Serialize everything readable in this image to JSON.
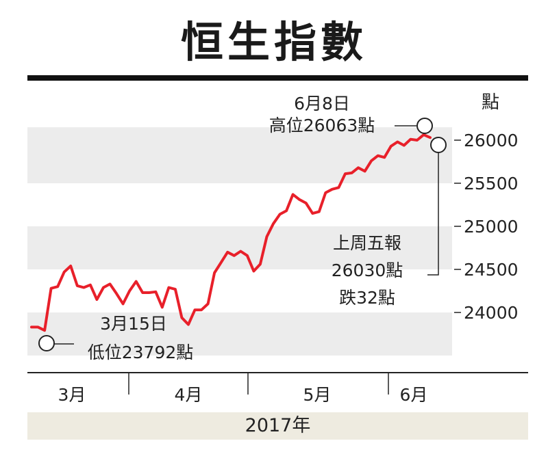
{
  "title": "恒生指數",
  "unit_label": "點",
  "year_label": "2017年",
  "colors": {
    "line": "#e8202a",
    "band": "#ececec",
    "year_band": "#eeebe0"
  },
  "annotations": {
    "high": {
      "line1": "6月8日",
      "line2": "高位26063點"
    },
    "low": {
      "line1": "3月15日",
      "line2": "低位23792點"
    },
    "last": {
      "line1": "上周五報",
      "line2": "26030點",
      "line3": "跌32點"
    }
  },
  "chart_data": {
    "type": "line",
    "title": "恒生指數",
    "ylabel": "點",
    "xlabel": "2017年",
    "ylim": [
      23500,
      26150
    ],
    "y_ticks": [
      {
        "value": 26000,
        "label": "26000"
      },
      {
        "value": 25500,
        "label": "25500"
      },
      {
        "value": 25000,
        "label": "25000"
      },
      {
        "value": 24500,
        "label": "24500"
      },
      {
        "value": 24000,
        "label": "24000"
      }
    ],
    "month_labels": [
      "3月",
      "4月",
      "5月",
      "6月"
    ],
    "series": [
      {
        "values": [
          23830,
          23830,
          23792,
          24280,
          24300,
          24470,
          24540,
          24310,
          24290,
          24320,
          24150,
          24290,
          24330,
          24220,
          24100,
          24250,
          24360,
          24230,
          24230,
          24240,
          24060,
          24290,
          24270,
          23940,
          23860,
          24030,
          24030,
          24100,
          24460,
          24580,
          24700,
          24660,
          24710,
          24660,
          24480,
          24560,
          24880,
          25030,
          25140,
          25180,
          25370,
          25310,
          25270,
          25150,
          25170,
          25390,
          25430,
          25450,
          25610,
          25620,
          25680,
          25640,
          25760,
          25820,
          25800,
          25930,
          25980,
          25940,
          26010,
          26000,
          26063,
          26030
        ]
      }
    ],
    "annotations": [
      {
        "label": "6月8日 高位26063點",
        "value": 26063
      },
      {
        "label": "3月15日 低位23792點",
        "value": 23792
      },
      {
        "label": "上周五報 26030點 跌32點",
        "value": 26030
      }
    ]
  }
}
